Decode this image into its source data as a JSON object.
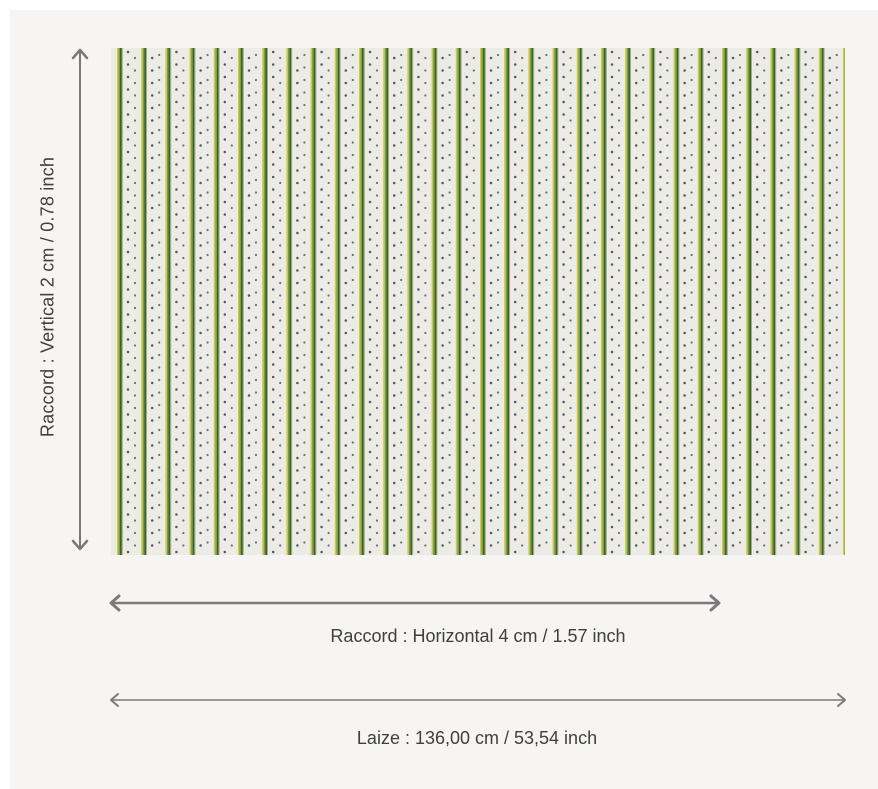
{
  "fabric": {
    "name": "fabric-swatch",
    "colors": {
      "background": "#ecebe6",
      "stripe_dark": "#3f5e3a",
      "stripe_green": "#7aa03a",
      "stripe_yellow": "#c9c94a",
      "dot": "#4a5a6a"
    }
  },
  "dimensions": {
    "vertical_repeat": "Raccord : Vertical 2 cm / 0.78 inch",
    "horizontal_repeat": "Raccord : Horizontal 4 cm / 1.57 inch",
    "width": "Laize : 136,00 cm / 53,54 inch"
  },
  "colors": {
    "arrow": "#7a7a7a",
    "text": "#3f3f3f"
  }
}
